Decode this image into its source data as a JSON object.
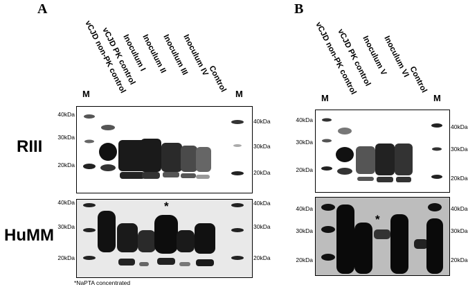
{
  "panels": [
    {
      "letter": "A",
      "lanes": [
        "vCJD non-PK control",
        "vCJD PK control",
        "Inoculum I",
        "Inoculum II",
        "Inoculum III",
        "Inoculum IV",
        "Control"
      ],
      "marker_left": "M",
      "marker_right": "M"
    },
    {
      "letter": "B",
      "lanes": [
        "vCJD non-PK control",
        "vCJD PK control",
        "Inoculum V",
        "Inoculum VI",
        "Control"
      ],
      "marker_left": "M",
      "marker_right": "M"
    }
  ],
  "rows": [
    "RIII",
    "HuMM"
  ],
  "kda": {
    "a_riii_left": [
      "40kDa",
      "30kDa",
      "20kDa"
    ],
    "a_riii_right": [
      "40kDa",
      "30kDa",
      "20kDa"
    ],
    "a_humm_left": [
      "40kDa",
      "30kDa",
      "20kDa"
    ],
    "a_humm_right": [
      "40kDa",
      "30kDa",
      "20kDa"
    ],
    "b_riii_left": [
      "40kDa",
      "30kDa",
      "20kDa"
    ],
    "b_riii_right": [
      "40kDa",
      "30kDa",
      "20kDa"
    ],
    "b_humm_left": [
      "40kDa",
      "30kDa",
      "20kDa"
    ],
    "b_humm_right": [
      "40kDa",
      "30kDa",
      "20kDa"
    ]
  },
  "asterisk": "*",
  "footnote": "*NaPTA concentrated"
}
